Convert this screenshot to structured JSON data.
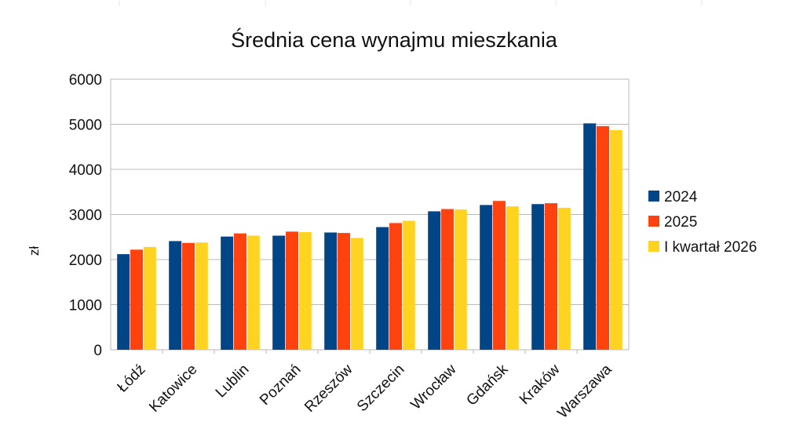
{
  "chart_data": {
    "type": "bar",
    "title": "Średnia cena wynajmu mieszkania",
    "xlabel": "",
    "ylabel": "zł",
    "ylim": [
      0,
      6000
    ],
    "yticks": [
      0,
      1000,
      2000,
      3000,
      4000,
      5000,
      6000
    ],
    "grid": true,
    "legend_position": "right",
    "categories": [
      "Łódź",
      "Katowice",
      "Lublin",
      "Poznań",
      "Rzeszów",
      "Szczecin",
      "Wrocław",
      "Gdańsk",
      "Kraków",
      "Warszawa"
    ],
    "series": [
      {
        "name": "2024",
        "color": "#004586",
        "values": [
          2120,
          2410,
          2510,
          2530,
          2600,
          2720,
          3070,
          3210,
          3230,
          5020
        ]
      },
      {
        "name": "2025",
        "color": "#ff420e",
        "values": [
          2220,
          2370,
          2580,
          2620,
          2590,
          2810,
          3120,
          3300,
          3250,
          4960
        ]
      },
      {
        "name": "I kwartał 2026",
        "color": "#ffd320",
        "values": [
          2280,
          2380,
          2530,
          2610,
          2480,
          2860,
          3110,
          3180,
          3150,
          4870
        ]
      }
    ]
  }
}
